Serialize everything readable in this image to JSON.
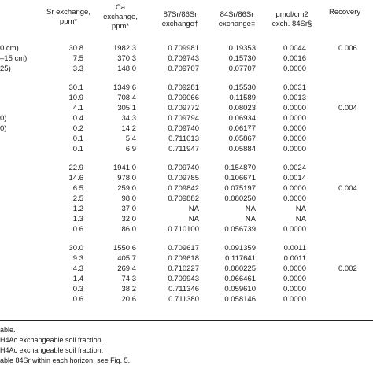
{
  "header": {
    "sr": [
      "Sr exchange,",
      "ppm*"
    ],
    "ca": [
      "Ca",
      "exchange,",
      "ppm*"
    ],
    "r87": [
      "87Sr/86Sr",
      "exchange†"
    ],
    "r84": [
      "84Sr/86Sr",
      "exchange‡"
    ],
    "mol": [
      "μmol/cm2",
      "exch. 84Sr§"
    ],
    "rec": [
      "Recovery"
    ]
  },
  "groups": [
    {
      "rows": [
        {
          "label": "0 cm)",
          "sr": "30.8",
          "ca": "1982.3",
          "r87": "0.709981",
          "r84": "0.19353",
          "mol": "0.0044",
          "rec": "0.006"
        },
        {
          "label": "–15 cm)",
          "sr": "7.5",
          "ca": "370.3",
          "r87": "0.709743",
          "r84": "0.15730",
          "mol": "0.0016",
          "rec": ""
        },
        {
          "label": "25)",
          "sr": "3.3",
          "ca": "148.0",
          "r87": "0.709707",
          "r84": "0.07707",
          "mol": "0.0000",
          "rec": ""
        }
      ]
    },
    {
      "rows": [
        {
          "label": "",
          "sr": "30.1",
          "ca": "1349.6",
          "r87": "0.709281",
          "r84": "0.15530",
          "mol": "0.0031",
          "rec": ""
        },
        {
          "label": "",
          "sr": "10.9",
          "ca": "708.4",
          "r87": "0.709066",
          "r84": "0.11589",
          "mol": "0.0013",
          "rec": ""
        },
        {
          "label": "",
          "sr": "4.1",
          "ca": "305.1",
          "r87": "0.709772",
          "r84": "0.08023",
          "mol": "0.0000",
          "rec": "0.004"
        },
        {
          "label": "0)",
          "sr": "0.4",
          "ca": "34.3",
          "r87": "0.709794",
          "r84": "0.06934",
          "mol": "0.0000",
          "rec": ""
        },
        {
          "label": "0)",
          "sr": "0.2",
          "ca": "14.2",
          "r87": "0.709740",
          "r84": "0.06177",
          "mol": "0.0000",
          "rec": ""
        },
        {
          "label": "",
          "sr": "0.1",
          "ca": "5.4",
          "r87": "0.711013",
          "r84": "0.05867",
          "mol": "0.0000",
          "rec": ""
        },
        {
          "label": "",
          "sr": "0.1",
          "ca": "6.9",
          "r87": "0.711947",
          "r84": "0.05884",
          "mol": "0.0000",
          "rec": ""
        }
      ]
    },
    {
      "rows": [
        {
          "label": "",
          "sr": "22.9",
          "ca": "1941.0",
          "r87": "0.709740",
          "r84": "0.154870",
          "mol": "0.0024",
          "rec": ""
        },
        {
          "label": "",
          "sr": "14.6",
          "ca": "978.0",
          "r87": "0.709785",
          "r84": "0.106671",
          "mol": "0.0014",
          "rec": ""
        },
        {
          "label": "",
          "sr": "6.5",
          "ca": "259.0",
          "r87": "0.709842",
          "r84": "0.075197",
          "mol": "0.0000",
          "rec": "0.004"
        },
        {
          "label": "",
          "sr": "2.5",
          "ca": "98.0",
          "r87": "0.709882",
          "r84": "0.080250",
          "mol": "0.0000",
          "rec": ""
        },
        {
          "label": "",
          "sr": "1.2",
          "ca": "37.0",
          "r87": "NA",
          "r84": "NA",
          "mol": "NA",
          "rec": ""
        },
        {
          "label": "",
          "sr": "1.3",
          "ca": "32.0",
          "r87": "NA",
          "r84": "NA",
          "mol": "NA",
          "rec": ""
        },
        {
          "label": "",
          "sr": "0.6",
          "ca": "86.0",
          "r87": "0.710100",
          "r84": "0.056739",
          "mol": "0.0000",
          "rec": ""
        }
      ]
    },
    {
      "rows": [
        {
          "label": "",
          "sr": "30.0",
          "ca": "1550.6",
          "r87": "0.709617",
          "r84": "0.091359",
          "mol": "0.0011",
          "rec": ""
        },
        {
          "label": "",
          "sr": "9.3",
          "ca": "405.7",
          "r87": "0.709618",
          "r84": "0.117641",
          "mol": "0.0011",
          "rec": ""
        },
        {
          "label": "",
          "sr": "4.3",
          "ca": "269.4",
          "r87": "0.710227",
          "r84": "0.080225",
          "mol": "0.0000",
          "rec": "0.002"
        },
        {
          "label": "",
          "sr": "1.4",
          "ca": "74.3",
          "r87": "0.709943",
          "r84": "0.066461",
          "mol": "0.0000",
          "rec": ""
        },
        {
          "label": "",
          "sr": "0.3",
          "ca": "38.2",
          "r87": "0.711346",
          "r84": "0.059610",
          "mol": "0.0000",
          "rec": ""
        },
        {
          "label": "",
          "sr": "0.6",
          "ca": "20.6",
          "r87": "0.711380",
          "r84": "0.058146",
          "mol": "0.0000",
          "rec": ""
        }
      ]
    }
  ],
  "notes": [
    "able.",
    "H4Ac exchangeable soil fraction.",
    "H4Ac exchangeable soil fraction.",
    "able 84Sr within each horizon; see Fig. 5."
  ]
}
